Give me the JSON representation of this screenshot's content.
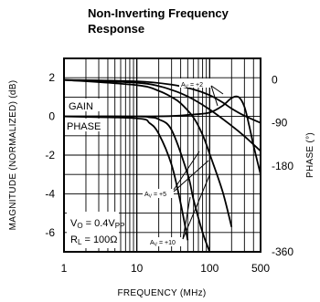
{
  "chart_data": {
    "type": "line",
    "title_line1": "Non-Inverting Frequency",
    "title_line2": "Response",
    "xlabel": "FREQUENCY (MHz)",
    "ylabel_left": "MAGNITUDE (NORMALIZED) (dB)",
    "ylabel_right": "PHASE (°)",
    "xscale": "log",
    "xlim": [
      1,
      500
    ],
    "ylim_magnitude": [
      -7,
      3
    ],
    "ylim_phase": [
      -360,
      45
    ],
    "grid": true,
    "x_ticks": [
      "1",
      "10",
      "100",
      "500"
    ],
    "y_ticks_left": [
      "2",
      "0",
      "-2",
      "-4",
      "-6"
    ],
    "y_ticks_right": [
      "0",
      "-90",
      "-180",
      "-360"
    ],
    "y_ticks_right_values": [
      0,
      -90,
      -180,
      -360
    ],
    "series": [
      {
        "name": "GAIN, AV=+2",
        "axis": "magnitude",
        "x": [
          1,
          10,
          30,
          60,
          100,
          150,
          200,
          250,
          300,
          350,
          400,
          500
        ],
        "y": [
          0,
          0,
          0.02,
          0.1,
          0.2,
          0.55,
          0.95,
          1.0,
          0.5,
          -0.5,
          -1.5,
          -3
        ]
      },
      {
        "name": "GAIN, AV=+5",
        "axis": "magnitude",
        "x": [
          1,
          10,
          15,
          20,
          30,
          50,
          60,
          80,
          100
        ],
        "y": [
          0,
          0,
          -0.05,
          -0.15,
          -0.7,
          -3,
          -4.3,
          -6,
          -7
        ]
      },
      {
        "name": "GAIN, AV=+10",
        "axis": "magnitude",
        "x": [
          1,
          10,
          15,
          20,
          30,
          40,
          50
        ],
        "y": [
          0,
          -0.1,
          -0.35,
          -0.9,
          -2.5,
          -4.5,
          -6.4
        ]
      },
      {
        "name": "PHASE, AV=+2",
        "axis": "phase",
        "x": [
          1,
          10,
          30,
          60,
          100,
          150,
          200,
          300,
          500
        ],
        "y": [
          0,
          -3,
          -10,
          -20,
          -32,
          -47,
          -60,
          -75,
          -90
        ]
      },
      {
        "name": "PHASE, AV=+5",
        "axis": "phase",
        "x": [
          1,
          10,
          20,
          30,
          40,
          60,
          100,
          200,
          300,
          500
        ],
        "y": [
          0,
          -6,
          -13,
          -21,
          -28,
          -41,
          -62,
          -96,
          -118,
          -149
        ]
      },
      {
        "name": "PHASE, AV=+10",
        "axis": "phase",
        "x": [
          1,
          10,
          20,
          30,
          40,
          60,
          80,
          100,
          150,
          200
        ],
        "y": [
          0,
          -11,
          -23,
          -36,
          -49,
          -79,
          -115,
          -155,
          -233,
          -308
        ]
      }
    ],
    "annotations": {
      "gain_label": "GAIN",
      "phase_label": "PHASE",
      "av2": "AV = +2",
      "av5": "AV = +5",
      "av10": "AV = +10",
      "vo_line": "VO = 0.4VPP",
      "rl_line": "RL = 100Ω"
    }
  }
}
